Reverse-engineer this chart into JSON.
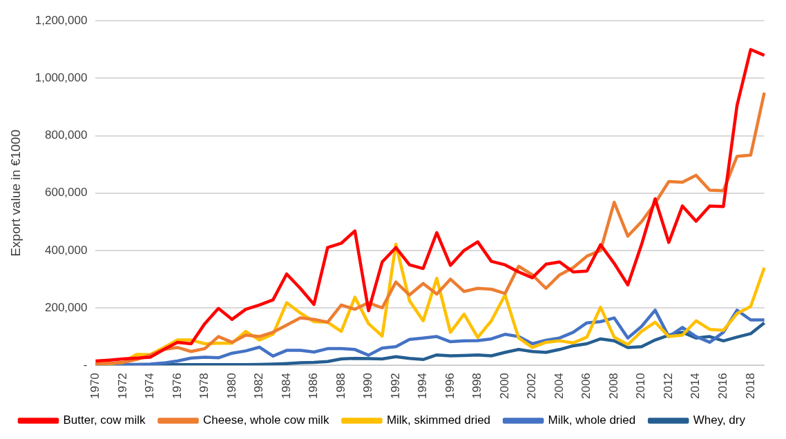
{
  "chart_data": {
    "type": "line",
    "ylabel": "Export value in €1000",
    "categories": [
      "1970",
      null,
      "1972",
      null,
      "1974",
      null,
      "1976",
      null,
      "1978",
      null,
      "1980",
      null,
      "1982",
      null,
      "1984",
      null,
      "1986",
      null,
      "1988",
      null,
      "1990",
      null,
      "1992",
      null,
      "1994",
      null,
      "1996",
      null,
      "1998",
      null,
      "2000",
      null,
      "2002",
      null,
      "2004",
      null,
      "2006",
      null,
      "2008",
      null,
      "2010",
      null,
      "2012",
      null,
      "2014",
      null,
      "2016",
      null,
      "2018",
      null
    ],
    "series": [
      {
        "name": "Butter, cow milk",
        "color": "#ff0000",
        "values": [
          15000,
          18000,
          22000,
          25000,
          28000,
          55000,
          80000,
          75000,
          145000,
          198000,
          160000,
          195000,
          210000,
          228000,
          318000,
          268000,
          212000,
          410000,
          425000,
          468000,
          190000,
          360000,
          410000,
          350000,
          337000,
          462000,
          348000,
          400000,
          430000,
          362000,
          350000,
          325000,
          305000,
          352000,
          360000,
          325000,
          328000,
          420000,
          355000,
          280000,
          420000,
          580000,
          428000,
          555000,
          502000,
          555000,
          553000,
          905000,
          1100000,
          1080000
        ]
      },
      {
        "name": "Cheese, whole cow milk",
        "color": "#ed7d31",
        "values": [
          5000,
          7000,
          10000,
          20000,
          35000,
          55000,
          62000,
          48000,
          58000,
          100000,
          80000,
          105000,
          100000,
          115000,
          140000,
          165000,
          160000,
          150000,
          210000,
          195000,
          218000,
          200000,
          290000,
          245000,
          285000,
          248000,
          300000,
          257000,
          268000,
          265000,
          250000,
          345000,
          315000,
          268000,
          315000,
          340000,
          380000,
          400000,
          568000,
          450000,
          500000,
          565000,
          640000,
          638000,
          662000,
          610000,
          608000,
          728000,
          732000,
          950000
        ]
      },
      {
        "name": "Milk, skimmed dried",
        "color": "#ffc000",
        "values": [
          3000,
          5000,
          10000,
          38000,
          37000,
          62000,
          88000,
          88000,
          75000,
          77000,
          77000,
          118000,
          88000,
          108000,
          218000,
          182000,
          152000,
          150000,
          118000,
          237000,
          145000,
          102000,
          422000,
          225000,
          155000,
          303000,
          115000,
          178000,
          97000,
          155000,
          245000,
          95000,
          62000,
          80000,
          85000,
          78000,
          98000,
          202000,
          98000,
          72000,
          118000,
          150000,
          100000,
          105000,
          155000,
          125000,
          122000,
          180000,
          205000,
          340000
        ]
      },
      {
        "name": "Milk, whole dried",
        "color": "#4472c4",
        "values": [
          2000,
          2000,
          3000,
          3000,
          4000,
          8000,
          15000,
          25000,
          28000,
          26000,
          42000,
          50000,
          63000,
          32000,
          52000,
          52000,
          46000,
          58000,
          58000,
          55000,
          35000,
          60000,
          65000,
          90000,
          95000,
          100000,
          82000,
          85000,
          86000,
          92000,
          108000,
          100000,
          75000,
          87000,
          95000,
          115000,
          148000,
          152000,
          165000,
          95000,
          135000,
          192000,
          100000,
          132000,
          100000,
          80000,
          115000,
          192000,
          158000,
          158000
        ]
      },
      {
        "name": "Whey, dry",
        "color": "#255e91",
        "values": [
          2000,
          2000,
          2000,
          2000,
          2000,
          2000,
          2000,
          2000,
          2000,
          2000,
          2000,
          2000,
          3000,
          4000,
          6000,
          9000,
          10000,
          13000,
          22000,
          24000,
          23000,
          22000,
          30000,
          24000,
          20000,
          36000,
          33000,
          34000,
          36000,
          33000,
          45000,
          55000,
          48000,
          45000,
          55000,
          68000,
          75000,
          92000,
          85000,
          62000,
          65000,
          88000,
          105000,
          115000,
          95000,
          100000,
          85000,
          98000,
          110000,
          148000
        ]
      }
    ],
    "ylim": [
      0,
      1200000
    ],
    "yticks": [
      {
        "value": 0,
        "label": "-"
      },
      {
        "value": 200000,
        "label": "200,000"
      },
      {
        "value": 400000,
        "label": "400,000"
      },
      {
        "value": 600000,
        "label": "600,000"
      },
      {
        "value": 800000,
        "label": "800,000"
      },
      {
        "value": 1000000,
        "label": "1,000,000"
      },
      {
        "value": 1200000,
        "label": "1,200,000"
      }
    ],
    "grid": "y",
    "legend": "bottom",
    "marker": "none",
    "line_style": "solid"
  }
}
